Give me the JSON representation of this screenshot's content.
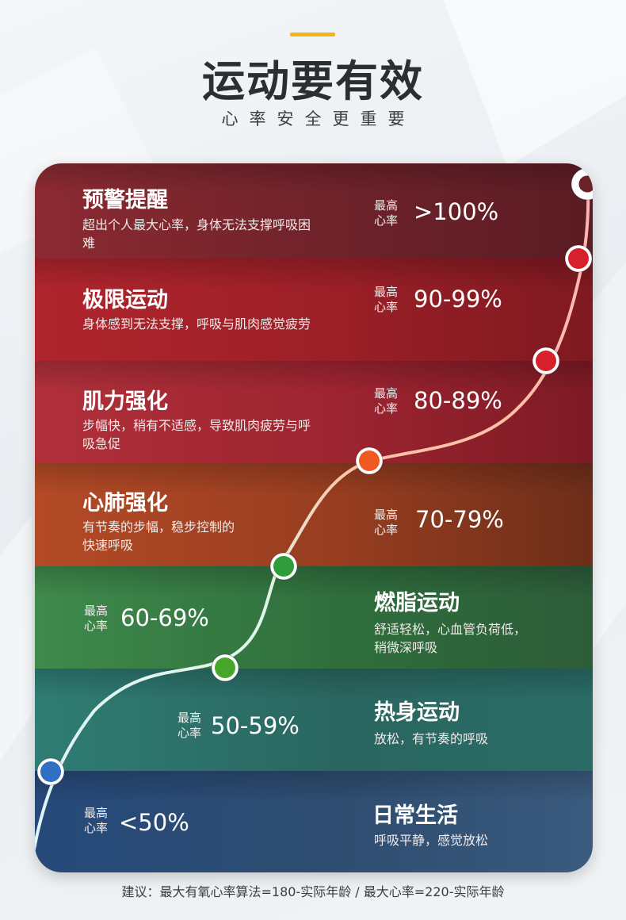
{
  "header": {
    "title": "运动要有效",
    "subtitle": "心率安全更重要"
  },
  "zones": [
    {
      "name": "预警提醒",
      "description": "超出个人最大心率，身体无法支撑呼吸困难",
      "label": "最高\n心率",
      "range": ">100%",
      "color": "#8c2a32"
    },
    {
      "name": "极限运动",
      "description": "身体感到无法支撑，呼吸与肌肉感觉疲劳",
      "label": "最高\n心率",
      "range": "90-99%",
      "color": "#b0252d"
    },
    {
      "name": "肌力强化",
      "description": "步幅快，稍有不适感，导致肌肉疲劳与呼吸急促",
      "label": "最高\n心率",
      "range": "80-89%",
      "color": "#b0303a"
    },
    {
      "name": "心肺强化",
      "description": "有节奏的步幅，稳步控制的快速呼吸",
      "label": "最高\n心率",
      "range": "70-79%",
      "color": "#b34a26"
    },
    {
      "name": "燃脂运动",
      "description": "舒适轻松，心血管负荷低，稍微深呼吸",
      "label": "最高\n心率",
      "range": "60-69%",
      "color": "#3f8a4c"
    },
    {
      "name": "热身运动",
      "description": "放松，有节奏的呼吸",
      "label": "最高\n心率",
      "range": "50-59%",
      "color": "#2f7d74"
    },
    {
      "name": "日常生活",
      "description": "呼吸平静，感觉放松",
      "label": "最高\n心率",
      "range": "<50%",
      "color": "#26497a"
    }
  ],
  "markers": {
    "colors": [
      "#ffffff",
      "#d7202b",
      "#d7202b",
      "#f05a22",
      "#2f9e3a",
      "#46a72a",
      "#2f6fc4"
    ],
    "top_marker_style": "ring"
  },
  "footnote": "建议：最大有氧心率算法=180-实际年龄 / 最大心率=220-实际年龄"
}
